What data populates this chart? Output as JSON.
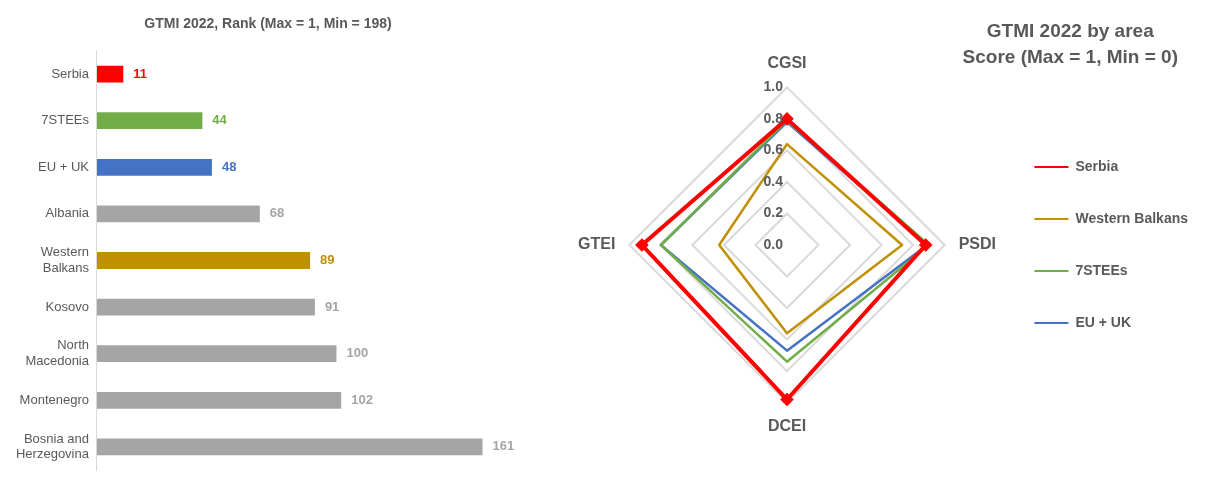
{
  "chart_data": [
    {
      "type": "bar",
      "orientation": "horizontal",
      "title": "GTMI 2022, Rank (Max = 1, Min = 198)",
      "categories": [
        "Serbia",
        "7STEEs",
        "EU + UK",
        "Albania",
        "Western Balkans",
        "Kosovo",
        "North Macedonia",
        "Montenegro",
        "Bosnia and Herzegovina"
      ],
      "values": [
        11,
        44,
        48,
        68,
        89,
        91,
        100,
        102,
        161
      ],
      "colors": [
        "#ff0000",
        "#70ad47",
        "#4472c4",
        "#a5a5a5",
        "#bf9000",
        "#a5a5a5",
        "#a5a5a5",
        "#a5a5a5",
        "#a5a5a5"
      ],
      "data_labels": true,
      "tick_labels": "y",
      "grid": false,
      "legend": false
    },
    {
      "type": "radar",
      "title": "GTMI 2022 by area",
      "subtitle": "Score (Max = 1, Min = 0)",
      "categories": [
        "CGSI",
        "PSDI",
        "DCEI",
        "GTEI"
      ],
      "series": [
        {
          "name": "Serbia",
          "color": "#ff0000",
          "marker": "diamond",
          "values": [
            0.8,
            0.88,
            0.98,
            0.92
          ]
        },
        {
          "name": "Western Balkans",
          "color": "#bf9000",
          "marker": "none",
          "values": [
            0.64,
            0.73,
            0.56,
            0.43
          ]
        },
        {
          "name": "7STEEs",
          "color": "#70ad47",
          "marker": "none",
          "values": [
            0.79,
            0.9,
            0.74,
            0.8
          ]
        },
        {
          "name": "EU + UK",
          "color": "#4472c4",
          "marker": "none",
          "values": [
            0.78,
            0.89,
            0.67,
            0.8
          ]
        }
      ],
      "ylim": [
        0,
        1
      ],
      "yticks": [
        {
          "value": 0,
          "label": "0.0"
        },
        {
          "value": 0.2,
          "label": "0.2"
        },
        {
          "value": 0.4,
          "label": "0.4"
        },
        {
          "value": 0.6,
          "label": "0.6"
        },
        {
          "value": 0.8,
          "label": "0.8"
        },
        {
          "value": 1,
          "label": "1.0"
        }
      ],
      "grid": true,
      "legend": "right"
    }
  ]
}
